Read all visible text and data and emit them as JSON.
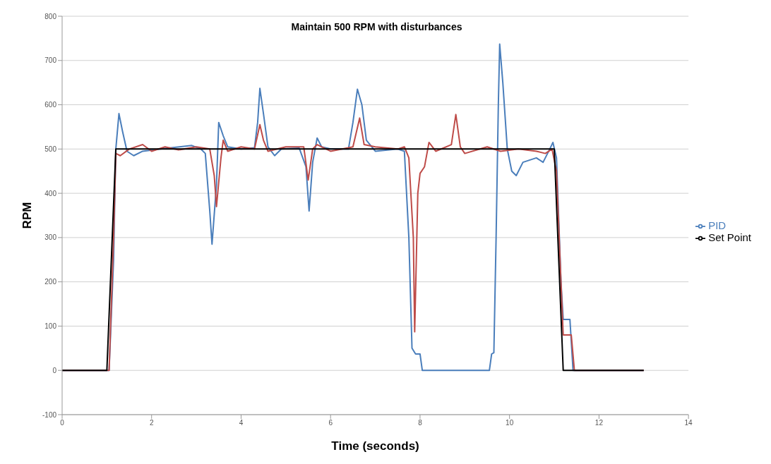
{
  "chart_data": {
    "type": "line",
    "title": "Maintain 500 RPM with disturbances",
    "xlabel": "Time (seconds)",
    "ylabel": "RPM",
    "xlim": [
      0,
      14
    ],
    "xticks": [
      0,
      2,
      4,
      6,
      8,
      10,
      12,
      14
    ],
    "ylim": [
      -100,
      800
    ],
    "yticks": [
      -100,
      0,
      100,
      200,
      300,
      400,
      500,
      600,
      700,
      800
    ],
    "grid": "y",
    "legend": "right",
    "marker": "none",
    "line_style": "solid",
    "series": [
      {
        "name": "PID",
        "color": "#4a7ebb",
        "x": [
          0,
          1.05,
          1.15,
          1.2,
          1.27,
          1.35,
          1.45,
          1.6,
          1.8,
          2.2,
          2.9,
          3.1,
          3.2,
          3.3,
          3.35,
          3.45,
          3.5,
          3.6,
          3.7,
          4.0,
          4.3,
          4.37,
          4.42,
          4.5,
          4.6,
          4.75,
          4.9,
          5.3,
          5.45,
          5.52,
          5.6,
          5.7,
          5.8,
          6.0,
          6.4,
          6.5,
          6.6,
          6.7,
          6.8,
          7.0,
          7.5,
          7.65,
          7.75,
          7.82,
          7.9,
          8.0,
          8.05,
          9.55,
          9.6,
          9.65,
          9.7,
          9.75,
          9.78,
          9.85,
          9.95,
          10.05,
          10.15,
          10.3,
          10.6,
          10.75,
          10.9,
          10.97,
          11.05,
          11.15,
          11.2,
          11.35,
          11.42,
          13
        ],
        "values": [
          0,
          0,
          250,
          500,
          580,
          540,
          495,
          485,
          495,
          500,
          508,
          500,
          490,
          360,
          285,
          420,
          560,
          530,
          505,
          500,
          503,
          560,
          637,
          580,
          505,
          485,
          500,
          502,
          460,
          360,
          470,
          525,
          505,
          500,
          500,
          560,
          635,
          600,
          520,
          495,
          500,
          495,
          300,
          50,
          37,
          37,
          0,
          0,
          37,
          40,
          300,
          600,
          737,
          650,
          500,
          450,
          440,
          470,
          480,
          470,
          500,
          515,
          480,
          200,
          115,
          115,
          0,
          0
        ]
      },
      {
        "color": "#be4b48",
        "x": [
          0,
          1.05,
          1.15,
          1.2,
          1.3,
          1.5,
          1.8,
          2.0,
          2.3,
          2.6,
          3.0,
          3.3,
          3.4,
          3.45,
          3.55,
          3.6,
          3.7,
          4.0,
          4.3,
          4.42,
          4.5,
          4.6,
          5.0,
          5.4,
          5.5,
          5.6,
          5.7,
          6.0,
          6.5,
          6.65,
          6.75,
          7.0,
          7.5,
          7.65,
          7.75,
          7.85,
          7.88,
          7.95,
          8.0,
          8.1,
          8.2,
          8.35,
          8.7,
          8.8,
          8.9,
          9.0,
          9.5,
          9.8,
          10.2,
          10.6,
          10.8,
          10.95,
          11.05,
          11.15,
          11.2,
          11.38,
          11.45,
          13
        ],
        "values": [
          0,
          0,
          300,
          490,
          485,
          500,
          510,
          495,
          505,
          498,
          505,
          500,
          440,
          370,
          480,
          520,
          495,
          505,
          500,
          555,
          520,
          495,
          505,
          505,
          430,
          500,
          510,
          495,
          505,
          570,
          510,
          505,
          500,
          505,
          480,
          300,
          87,
          400,
          445,
          460,
          515,
          495,
          510,
          578,
          505,
          490,
          505,
          495,
          500,
          495,
          490,
          500,
          450,
          200,
          80,
          80,
          0,
          0
        ]
      },
      {
        "name": "Set Point",
        "color": "#000000",
        "x": [
          0,
          1,
          1.2,
          11,
          11.2,
          13
        ],
        "values": [
          0,
          0,
          500,
          500,
          0,
          0
        ]
      }
    ]
  }
}
